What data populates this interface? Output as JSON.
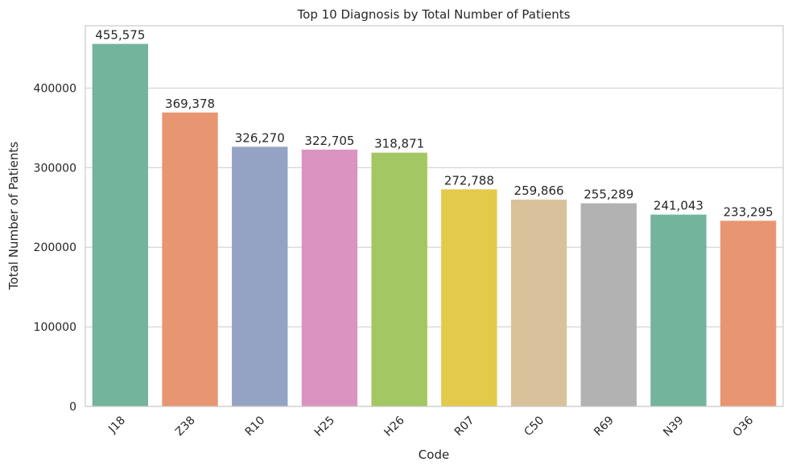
{
  "chart_data": {
    "type": "bar",
    "title": "Top 10 Diagnosis by Total Number of Patients",
    "xlabel": "Code",
    "ylabel": "Total Number of Patients",
    "categories": [
      "J18",
      "Z38",
      "R10",
      "H25",
      "H26",
      "R07",
      "C50",
      "R69",
      "N39",
      "O36"
    ],
    "values": [
      455575,
      369378,
      326270,
      322705,
      318871,
      272788,
      259866,
      255289,
      241043,
      233295
    ],
    "data_labels": [
      "455,575",
      "369,378",
      "326,270",
      "322,705",
      "318,871",
      "272,788",
      "259,866",
      "255,289",
      "241,043",
      "233,295"
    ],
    "ylim": [
      0,
      478354
    ],
    "yticks": [
      0,
      100000,
      200000,
      300000,
      400000
    ],
    "ytick_labels": [
      "0",
      "100000",
      "200000",
      "300000",
      "400000"
    ],
    "grid": "horizontal",
    "colors": [
      "#73b49d",
      "#e89672",
      "#94a3c3",
      "#db93c1",
      "#a3c762",
      "#e3ca4a",
      "#d9c29b",
      "#b2b2b2",
      "#73b49d",
      "#e89672"
    ]
  }
}
